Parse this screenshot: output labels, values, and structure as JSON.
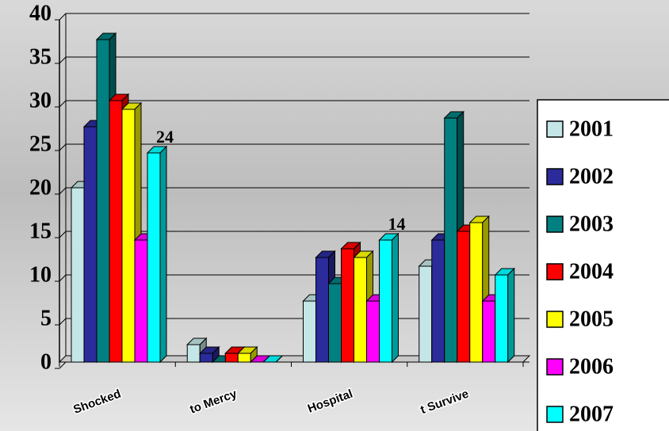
{
  "chart_data": {
    "type": "bar3d",
    "categories": [
      "Shocked",
      "to Mercy",
      "Hospital",
      "t Survive"
    ],
    "series": [
      {
        "name": "2001",
        "color": "#c4e6e6",
        "values": [
          20,
          2,
          7,
          11
        ]
      },
      {
        "name": "2002",
        "color": "#2b2b9c",
        "values": [
          27,
          1,
          12,
          14
        ]
      },
      {
        "name": "2003",
        "color": "#008080",
        "values": [
          37,
          0,
          9,
          28
        ]
      },
      {
        "name": "2004",
        "color": "#ff0000",
        "values": [
          30,
          1,
          13,
          15
        ]
      },
      {
        "name": "2005",
        "color": "#ffff00",
        "values": [
          29,
          1,
          12,
          16
        ]
      },
      {
        "name": "2006",
        "color": "#ff00ff",
        "values": [
          14,
          0,
          7,
          7
        ]
      },
      {
        "name": "2007",
        "color": "#00ffff",
        "values": [
          24,
          0,
          14,
          10
        ],
        "value_labels": [
          "24",
          null,
          "14",
          null
        ]
      }
    ],
    "ylim": [
      0,
      40
    ],
    "yticks": [
      0,
      5,
      10,
      15,
      20,
      25,
      30,
      35,
      40
    ],
    "grid": true,
    "legend": "right"
  }
}
